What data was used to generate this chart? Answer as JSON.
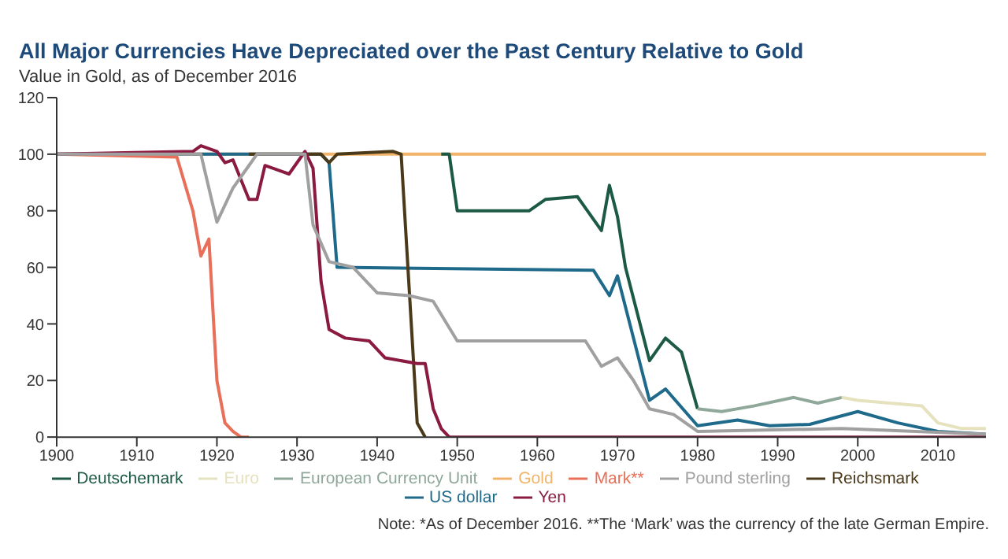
{
  "chart_data": {
    "type": "line",
    "title": "All Major Currencies Have Depreciated over the Past Century Relative to Gold",
    "subtitle": "Value in Gold, as of December 2016",
    "annotations": [
      "Note: *As of December 2016. **The ‘Mark’ was the currency of the late German Empire."
    ],
    "xlim": [
      1900,
      2016
    ],
    "xticks": [
      1900,
      1910,
      1920,
      1930,
      1940,
      1950,
      1960,
      1970,
      1980,
      1990,
      2000,
      2010
    ],
    "ylim": [
      0,
      120
    ],
    "yticks": [
      0,
      20,
      40,
      60,
      80,
      100,
      120
    ],
    "grid": false,
    "legend": "bottom",
    "marker": "none",
    "line_style": "solid",
    "series": [
      {
        "name": "Gold",
        "color": "#f2b46a",
        "x": [
          1900,
          2016
        ],
        "values": [
          100,
          100
        ]
      },
      {
        "name": "US dollar",
        "color": "#1f6a8a",
        "x": [
          1900,
          1933,
          1934,
          1935,
          1967,
          1969,
          1970,
          1974,
          1976,
          1980,
          1985,
          1989,
          1994,
          2000,
          2005,
          2010,
          2016
        ],
        "values": [
          100,
          100,
          97,
          60,
          59,
          50,
          57,
          13,
          17,
          4,
          6,
          4,
          4.5,
          9,
          5,
          2,
          1
        ]
      },
      {
        "name": "Mark**",
        "color": "#e8705a",
        "x": [
          1900,
          1915,
          1917,
          1918,
          1919,
          1920,
          1921,
          1922,
          1923,
          1924
        ],
        "values": [
          100,
          99,
          80,
          64,
          70,
          20,
          5,
          2,
          0,
          0
        ]
      },
      {
        "name": "Reichsmark",
        "color": "#4a3a1a",
        "x": [
          1924,
          1933,
          1934,
          1935,
          1942,
          1943,
          1945,
          1946
        ],
        "values": [
          100,
          100,
          97,
          100,
          101,
          100,
          5,
          0
        ]
      },
      {
        "name": "Deutschemark",
        "color": "#1d5a45",
        "x": [
          1948,
          1949,
          1950,
          1959,
          1961,
          1965,
          1968,
          1969,
          1970,
          1971,
          1974,
          1976,
          1978,
          1980
        ],
        "values": [
          100,
          100,
          80,
          80,
          84,
          85,
          73,
          89,
          78,
          60,
          27,
          35,
          30,
          10
        ]
      },
      {
        "name": "European Currency Unit",
        "color": "#8fa89a",
        "x": [
          1980,
          1983,
          1987,
          1992,
          1995,
          1998
        ],
        "values": [
          10,
          9,
          11,
          14,
          12,
          14
        ]
      },
      {
        "name": "Euro",
        "color": "#e6e2be",
        "x": [
          1998,
          2000,
          2004,
          2008,
          2010,
          2013,
          2016
        ],
        "values": [
          14,
          13,
          12,
          11,
          5,
          3,
          3
        ]
      },
      {
        "name": "Yen",
        "color": "#8a1a40",
        "x": [
          1900,
          1917,
          1918,
          1920,
          1921,
          1922,
          1924,
          1925,
          1926,
          1928,
          1929,
          1931,
          1932,
          1933,
          1934,
          1936,
          1939,
          1941,
          1945,
          1946,
          1947,
          1948,
          1949,
          2016
        ],
        "values": [
          100,
          101,
          103,
          101,
          97,
          98,
          84,
          84,
          96,
          94,
          93,
          101,
          95,
          55,
          38,
          35,
          34,
          28,
          26,
          26,
          10,
          3,
          0,
          0
        ]
      },
      {
        "name": "Pound sterling",
        "color": "#a0a0a0",
        "x": [
          1900,
          1918,
          1920,
          1922,
          1924,
          1925,
          1931,
          1932,
          1934,
          1937,
          1940,
          1944,
          1947,
          1950,
          1966,
          1968,
          1970,
          1972,
          1974,
          1977,
          1980,
          1998,
          2016
        ],
        "values": [
          100,
          100,
          76,
          88,
          96,
          100,
          100,
          75,
          62,
          60,
          51,
          50,
          48,
          34,
          34,
          25,
          28,
          20,
          10,
          8,
          2,
          3,
          1
        ]
      }
    ]
  }
}
